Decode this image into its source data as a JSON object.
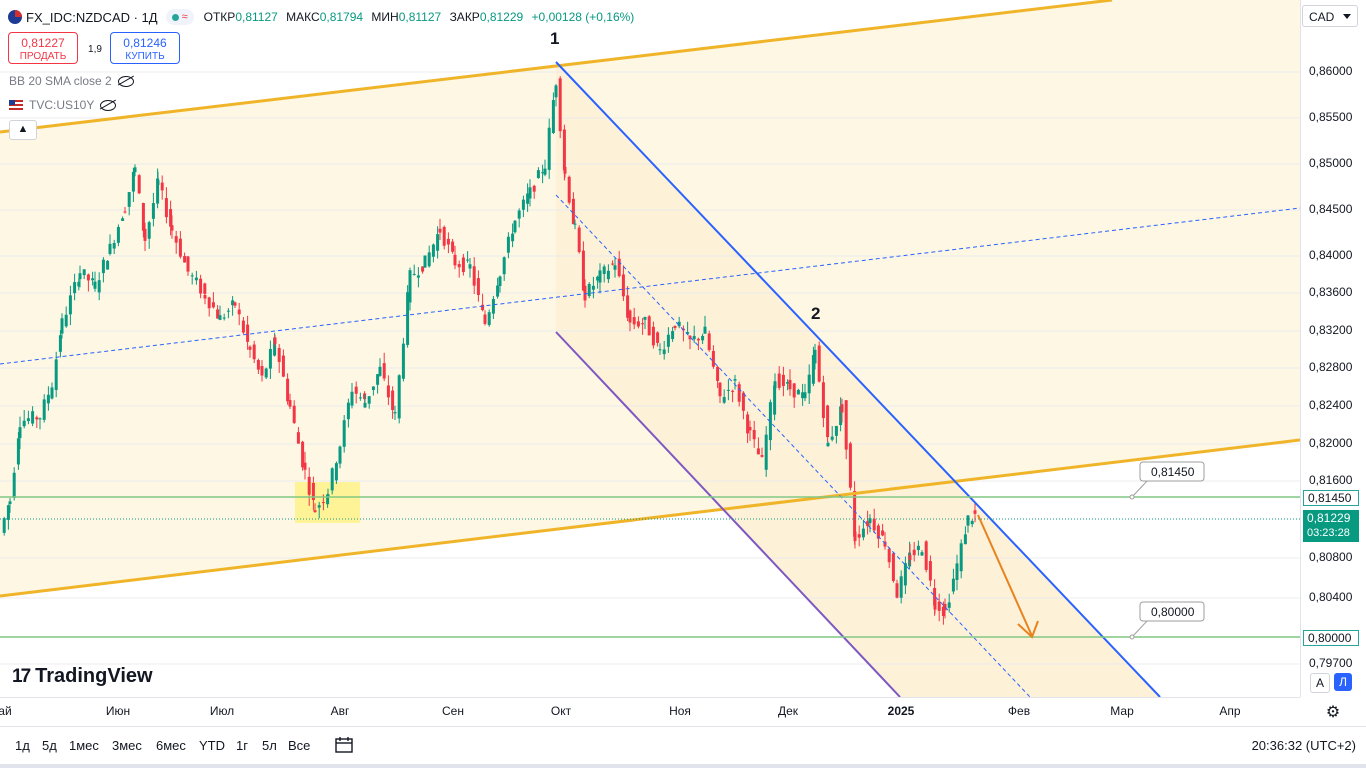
{
  "header": {
    "symbol": "FX_IDC:NZDCAD · 1Д",
    "open_label": "ОТКР",
    "open": "0,81127",
    "high_label": "МАКС",
    "high": "0,81794",
    "low_label": "МИН",
    "low": "0,81127",
    "close_label": "ЗАКР",
    "close": "0,81229",
    "change": "+0,00128 (+0,16%)"
  },
  "trade": {
    "sell_price": "0,81227",
    "sell_label": "ПРОДАТЬ",
    "spread": "1,9",
    "buy_price": "0,81246",
    "buy_label": "КУПИТЬ"
  },
  "indicators": {
    "bb": "BB 20 SMA close 2",
    "compare": "TVC:US10Y"
  },
  "brand": "TradingView",
  "currency": "CAD",
  "price_axis": {
    "ticks": [
      "0,86000",
      "0,85500",
      "0,85000",
      "0,84500",
      "0,84000",
      "0,83600",
      "0,83200",
      "0,82800",
      "0,82400",
      "0,82000",
      "0,81600",
      "0,80800",
      "0,80400",
      "0,79700"
    ],
    "level_1": "0,81450",
    "level_2": "0,80000",
    "current_price": "0,81229",
    "countdown": "03:23:28"
  },
  "time_axis": [
    "ай",
    "Июн",
    "Июл",
    "Авг",
    "Сен",
    "Окт",
    "Ноя",
    "Дек",
    "2025",
    "Фев",
    "Мар",
    "Апр"
  ],
  "axis_buttons": {
    "auto": "A",
    "log": "Л"
  },
  "ranges": [
    "1д",
    "5д",
    "1мес",
    "3мес",
    "6мес",
    "YTD",
    "1г",
    "5л",
    "Все"
  ],
  "clock": "20:36:32 (UTC+2)",
  "chart_data": {
    "type": "candlestick",
    "annotations": [
      {
        "label": "1",
        "price": 0.861
      },
      {
        "label": "2",
        "price": 0.831
      },
      {
        "label": "0,81450",
        "price": 0.8145
      },
      {
        "label": "0,80000",
        "price": 0.8
      }
    ],
    "horizontal_levels": [
      0.8145,
      0.8
    ],
    "colors": {
      "up": "#089981",
      "down": "#f23645",
      "channel": "#f0b429",
      "down_channel": "#2962ff",
      "support": "#7e57c2",
      "level": "#81c784",
      "forecast": "#e8831f"
    },
    "candles": []
  }
}
